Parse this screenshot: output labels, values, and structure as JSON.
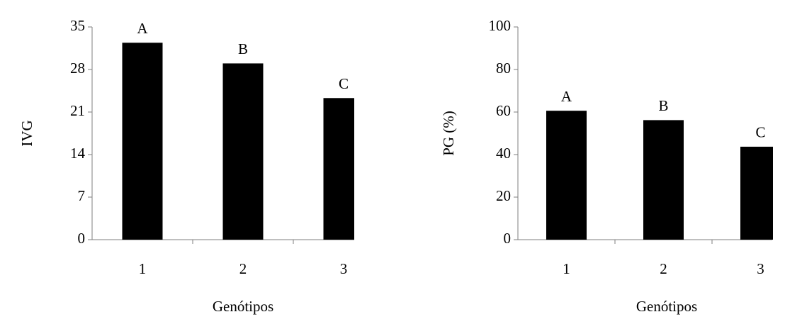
{
  "chart_data": [
    {
      "type": "bar",
      "y_label": "IVG",
      "x_label": "Genótipos",
      "categories": [
        "1",
        "2",
        "3"
      ],
      "values": [
        32.4,
        29,
        23.3
      ],
      "annotations": [
        "A",
        "B",
        "C"
      ],
      "color": "#000000",
      "ylim": [
        0,
        35
      ],
      "yticks": [
        0,
        7,
        14,
        21,
        28,
        35
      ]
    },
    {
      "type": "bar",
      "y_label": "PG (%)",
      "x_label": "Genótipos",
      "categories": [
        "1",
        "2",
        "3"
      ],
      "values": [
        60.6,
        56.2,
        43.7
      ],
      "annotations": [
        "A",
        "B",
        "C"
      ],
      "color": "#000000",
      "ylim": [
        0,
        100
      ],
      "yticks": [
        0,
        20,
        40,
        60,
        80,
        100
      ]
    }
  ]
}
